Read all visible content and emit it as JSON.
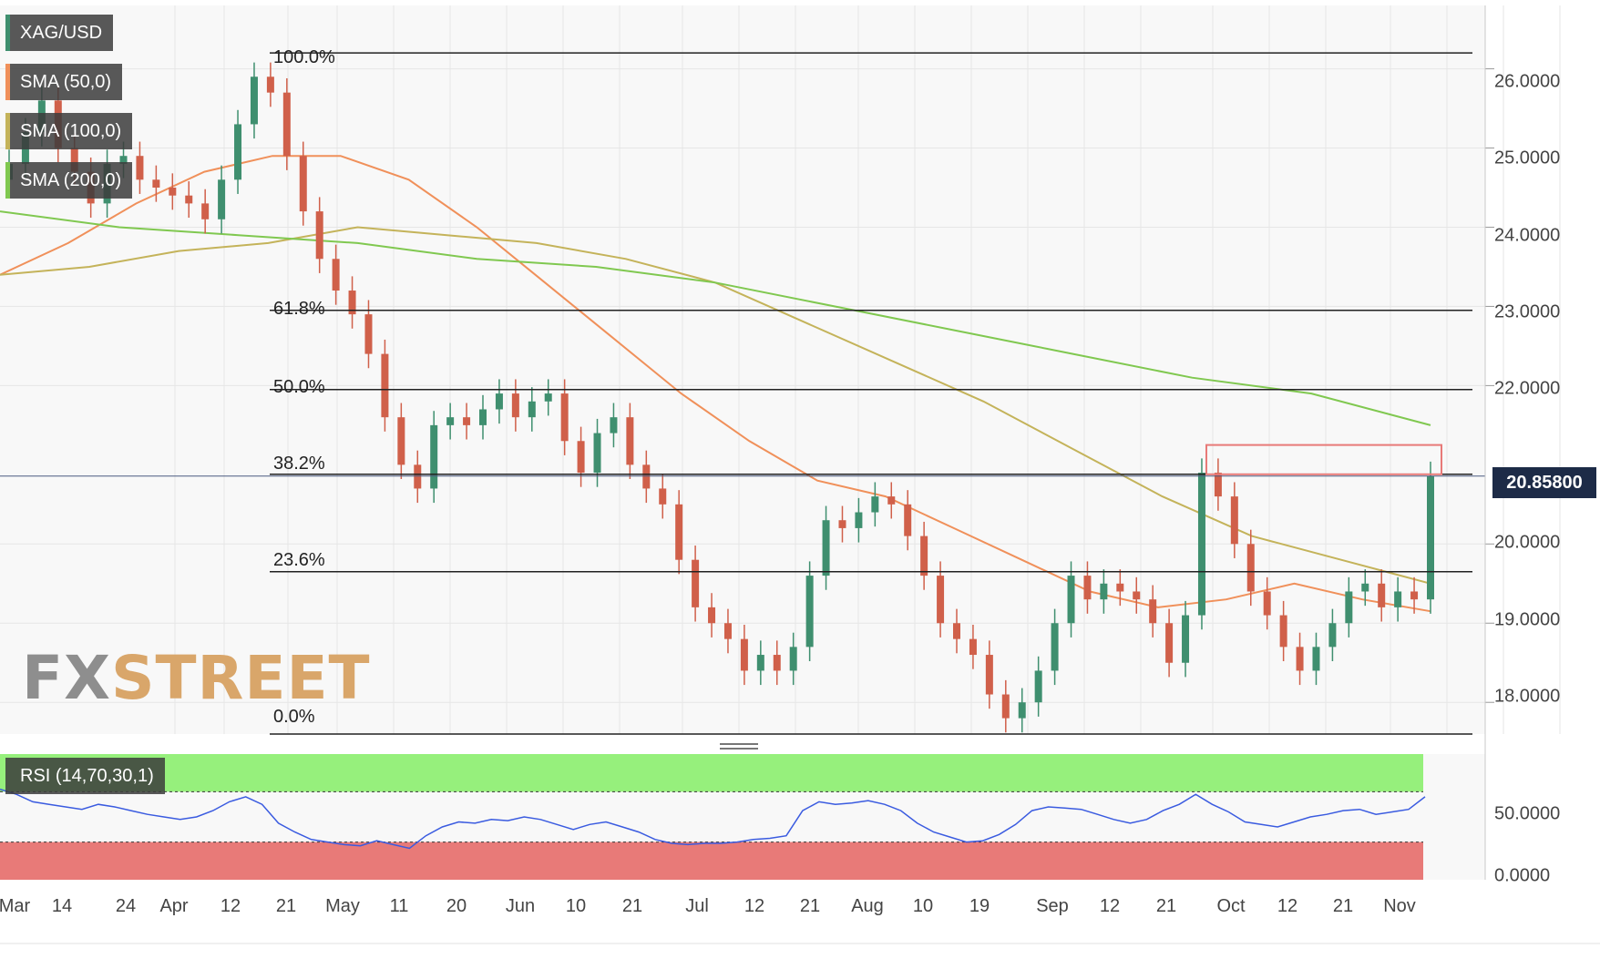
{
  "legend": {
    "symbol": "XAG/USD",
    "sma50": "SMA (50,0)",
    "sma100": "SMA (100,0)",
    "sma200": "SMA (200,0)",
    "rsi": "RSI (14,70,30,1)"
  },
  "watermark": {
    "fx": "FX",
    "street": "STREET"
  },
  "current_price": "20.85800",
  "colors": {
    "up": "#3f8f6f",
    "down": "#d0604a",
    "sma50": "#f0905a",
    "sma100": "#c4b35a",
    "sma200": "#80c850",
    "rsi": "#3a5be0",
    "overbought": "#96f07c",
    "oversold": "#e87a78",
    "resistance_box": "#e87a78",
    "price_badge": "#1d2b47"
  },
  "chart_data": [
    {
      "type": "candlestick",
      "title": "XAG/USD",
      "ylim": [
        17.6,
        26.8
      ],
      "y_ticks": [
        "26.0000",
        "25.0000",
        "24.0000",
        "23.0000",
        "22.0000",
        "20.0000",
        "19.0000",
        "18.0000"
      ],
      "x_tick_labels": [
        "Mar",
        "14",
        "24",
        "Apr",
        "12",
        "21",
        "May",
        "11",
        "20",
        "Jun",
        "10",
        "21",
        "Jul",
        "12",
        "21",
        "Aug",
        "10",
        "19",
        "Sep",
        "12",
        "21",
        "Oct",
        "12",
        "21",
        "Nov"
      ],
      "fibonacci": [
        {
          "label": "100.0%",
          "value": 26.2
        },
        {
          "label": "61.8%",
          "value": 22.95
        },
        {
          "label": "50.0%",
          "value": 21.95
        },
        {
          "label": "38.2%",
          "value": 20.88
        },
        {
          "label": "23.6%",
          "value": 19.65
        },
        {
          "label": "0.0%",
          "value": 17.6
        }
      ],
      "current_price": 20.858,
      "resistance_zone": {
        "from": 20.88,
        "to": 21.25
      },
      "close_path": [
        24.8,
        25.2,
        25.6,
        25.0,
        24.7,
        24.3,
        24.8,
        24.9,
        24.6,
        24.5,
        24.4,
        24.3,
        24.1,
        24.6,
        25.3,
        25.9,
        25.7,
        24.9,
        24.2,
        23.6,
        23.2,
        22.9,
        22.4,
        21.6,
        21.0,
        20.7,
        21.5,
        21.6,
        21.5,
        21.7,
        21.9,
        21.6,
        21.8,
        21.9,
        21.3,
        20.9,
        21.4,
        21.6,
        21.0,
        20.7,
        20.5,
        19.8,
        19.2,
        19.0,
        18.8,
        18.4,
        18.6,
        18.4,
        18.7,
        19.6,
        20.3,
        20.2,
        20.4,
        20.6,
        20.5,
        20.1,
        19.6,
        19.0,
        18.8,
        18.6,
        18.1,
        17.8,
        18.0,
        18.4,
        19.0,
        19.6,
        19.3,
        19.5,
        19.4,
        19.3,
        19.0,
        18.5,
        19.1,
        20.9,
        20.6,
        20.0,
        19.4,
        19.1,
        18.7,
        18.4,
        18.7,
        19.0,
        19.4,
        19.5,
        19.2,
        19.4,
        19.3,
        20.86
      ],
      "series": [
        {
          "name": "SMA (50,0)",
          "values": [
            23.4,
            23.8,
            24.3,
            24.7,
            24.9,
            24.9,
            24.6,
            24.0,
            23.3,
            22.6,
            21.9,
            21.3,
            20.8,
            20.6,
            20.2,
            19.8,
            19.4,
            19.2,
            19.3,
            19.5,
            19.3,
            19.15
          ]
        },
        {
          "name": "SMA (100,0)",
          "values": [
            23.4,
            23.5,
            23.7,
            23.8,
            24.0,
            23.9,
            23.8,
            23.6,
            23.3,
            22.8,
            22.3,
            21.8,
            21.2,
            20.6,
            20.1,
            19.8,
            19.5
          ]
        },
        {
          "name": "SMA (200,0)",
          "values": [
            24.2,
            24.0,
            23.9,
            23.8,
            23.6,
            23.5,
            23.3,
            23.0,
            22.7,
            22.4,
            22.1,
            21.9,
            21.5
          ]
        }
      ]
    },
    {
      "type": "line",
      "title": "RSI (14,70,30,1)",
      "ylim": [
        0,
        100
      ],
      "y_ticks": [
        "50.0000",
        "0.0000"
      ],
      "overbought": 70,
      "oversold": 30,
      "series": [
        {
          "name": "RSI (14,70,30,1)",
          "values": [
            72,
            68,
            62,
            60,
            58,
            56,
            60,
            58,
            55,
            52,
            50,
            48,
            50,
            55,
            62,
            66,
            60,
            45,
            38,
            32,
            30,
            28,
            27,
            31,
            28,
            25,
            35,
            42,
            46,
            45,
            48,
            47,
            50,
            48,
            44,
            40,
            44,
            46,
            42,
            38,
            32,
            29,
            28,
            29,
            29,
            30,
            32,
            33,
            35,
            55,
            62,
            60,
            61,
            63,
            60,
            55,
            45,
            38,
            34,
            30,
            31,
            36,
            44,
            55,
            58,
            57,
            56,
            52,
            48,
            45,
            48,
            55,
            60,
            68,
            60,
            54,
            46,
            44,
            42,
            46,
            50,
            52,
            55,
            56,
            52,
            54,
            56,
            66
          ]
        }
      ]
    }
  ]
}
